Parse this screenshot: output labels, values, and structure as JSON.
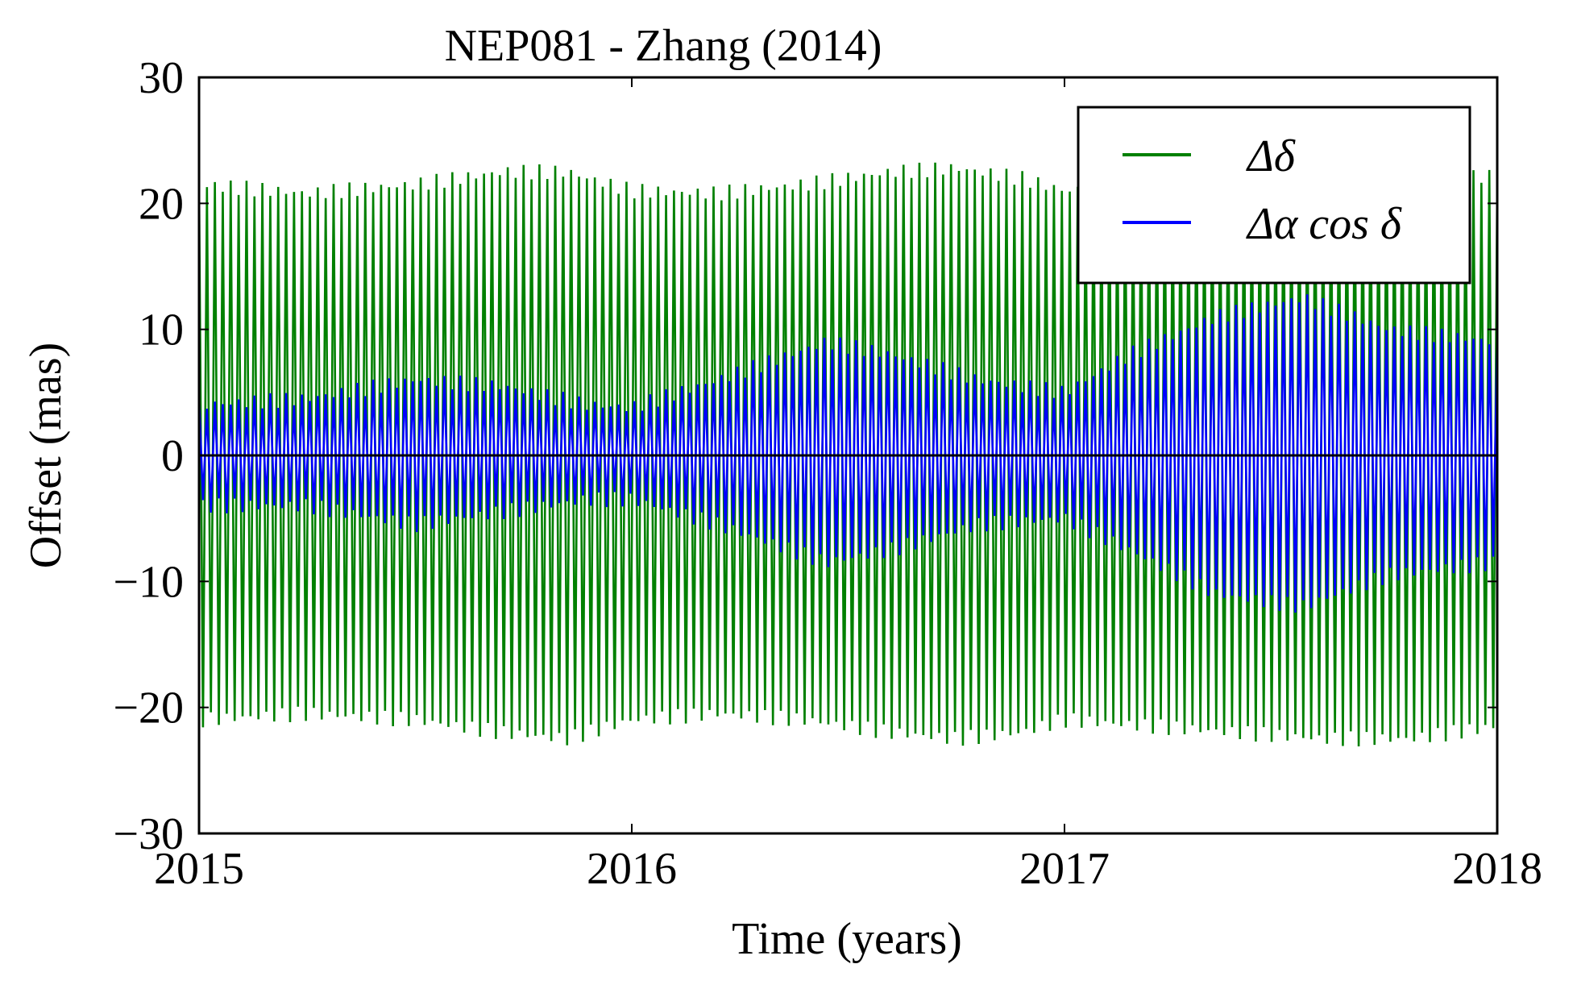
{
  "chart_data": {
    "type": "line",
    "title": "NEP081 - Zhang (2014)",
    "xlabel": "Time (years)",
    "ylabel": "Offset (mas)",
    "xlim": [
      2015,
      2018
    ],
    "ylim": [
      -30,
      30
    ],
    "x_ticks": [
      2015,
      2016,
      2017,
      2018
    ],
    "x_tick_labels": [
      "2015",
      "2016",
      "2017",
      "2018"
    ],
    "y_ticks": [
      30,
      20,
      10,
      0,
      -10,
      -20,
      -30
    ],
    "y_tick_labels": [
      "30",
      "20",
      "10",
      "0",
      "−10",
      "−20",
      "−30"
    ],
    "grid": false,
    "legend_position": "top-right",
    "zero_line": 0,
    "series": [
      {
        "name": "Δδ",
        "color": "#008000",
        "oscillation_cycles": 164,
        "envelope_x": [
          2015.0,
          2015.25,
          2015.5,
          2015.7,
          2015.85,
          2016.0,
          2016.2,
          2016.4,
          2016.6,
          2016.75,
          2016.9,
          2017.0,
          2017.2,
          2017.4,
          2017.6,
          2017.8,
          2018.0
        ],
        "envelope_upper": [
          21.5,
          20.8,
          21.5,
          22.5,
          22.5,
          21.0,
          20.8,
          21.5,
          22.5,
          22.8,
          22.0,
          21.0,
          21.5,
          22.0,
          22.5,
          22.8,
          22.0
        ],
        "envelope_lower": [
          -21.0,
          -20.5,
          -21.0,
          -22.0,
          -22.5,
          -21.0,
          -20.5,
          -21.0,
          -22.0,
          -22.5,
          -22.0,
          -21.0,
          -21.5,
          -22.0,
          -22.5,
          -22.5,
          -21.5
        ]
      },
      {
        "name": "Δα cos δ",
        "color": "#0000ff",
        "oscillation_cycles": 164,
        "envelope_x": [
          2015.0,
          2015.25,
          2015.5,
          2015.7,
          2015.9,
          2016.0,
          2016.2,
          2016.45,
          2016.6,
          2016.8,
          2017.0,
          2017.15,
          2017.35,
          2017.55,
          2017.75,
          2018.0
        ],
        "envelope_upper": [
          4.0,
          4.5,
          6.0,
          5.5,
          4.0,
          3.8,
          6.0,
          9.0,
          8.0,
          6.0,
          5.0,
          8.0,
          11.0,
          12.5,
          10.0,
          9.0
        ],
        "envelope_lower": [
          -4.0,
          -4.0,
          -5.5,
          -4.5,
          -3.5,
          -3.5,
          -5.5,
          -8.5,
          -7.5,
          -5.5,
          -5.0,
          -7.5,
          -11.0,
          -12.0,
          -9.5,
          -8.5
        ]
      }
    ]
  }
}
